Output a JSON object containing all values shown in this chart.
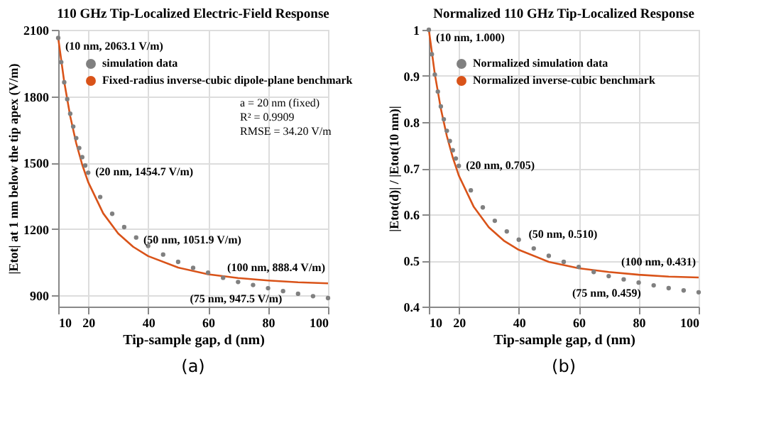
{
  "chart_data": [
    {
      "type": "scatter",
      "title": "110 GHz Tip-Localized Electric-Field Response",
      "xlabel": "Tip-sample gap,  d (nm)",
      "ylabel": "|Etot| at 1 nm below the tip apex (V/m)",
      "xlim": [
        10,
        100
      ],
      "xticks": [
        10,
        20,
        40,
        60,
        80,
        100
      ],
      "ylim": [
        850,
        2100
      ],
      "yticks": [
        900,
        1200,
        1500,
        1800,
        2100
      ],
      "grid": true,
      "legend": "top right",
      "series": [
        {
          "name": "simulation data",
          "marker": "circle",
          "color": "#808080",
          "x": [
            10,
            11,
            12,
            13,
            14,
            15,
            16,
            17,
            18,
            19,
            20,
            24,
            28,
            32,
            36,
            40,
            45,
            50,
            55,
            60,
            65,
            70,
            75,
            80,
            85,
            90,
            95,
            100
          ],
          "values": [
            2063.1,
            1954,
            1863,
            1787,
            1721,
            1663,
            1611,
            1566,
            1525,
            1487,
            1454.7,
            1345,
            1269,
            1209,
            1162,
            1124,
            1085,
            1051.9,
            1025,
            1003,
            980,
            961,
            947.5,
            933,
            920,
            908,
            897,
            888.4
          ]
        },
        {
          "name": "Fixed-radius inverse-cubic dipole-plane benchmark",
          "type": "line",
          "marker": "none",
          "line_style": "solid",
          "color": "#d95319",
          "x": [
            10,
            12,
            14,
            16,
            18,
            20,
            25,
            30,
            35,
            40,
            50,
            60,
            70,
            80,
            90,
            100
          ],
          "values": [
            2063,
            1865,
            1710,
            1588,
            1491,
            1412,
            1271,
            1180,
            1120,
            1078,
            1026,
            996,
            979,
            968,
            960,
            955
          ]
        }
      ],
      "annotations": [
        {
          "text": "(10 nm, 2063.1 V/m)",
          "x": 10,
          "y": 2063.1
        },
        {
          "text": "(20 nm, 1454.7 V/m)",
          "x": 20,
          "y": 1454.7
        },
        {
          "text": "(50 nm, 1051.9 V/m)",
          "x": 50,
          "y": 1051.9
        },
        {
          "text": "(75 nm, 947.5 V/m)",
          "x": 75,
          "y": 947.5
        },
        {
          "text": "(100 nm, 888.4 V/m)",
          "x": 100,
          "y": 888.4
        },
        "a = 20 nm (fixed)",
        "R² = 0.9909",
        "RMSE = 34.20 V/m",
        "(a)"
      ]
    },
    {
      "type": "scatter",
      "title": "Normalized 110 GHz Tip-Localized Response",
      "xlabel": "Tip-sample gap,  d (nm)",
      "ylabel": "|Etot(d)| / |Etot(10 nm)|",
      "xlim": [
        10,
        100
      ],
      "xticks": [
        10,
        20,
        40,
        60,
        80,
        100
      ],
      "ylim": [
        0.4,
        1.0
      ],
      "yticks": [
        0.4,
        0.5,
        0.6,
        0.7,
        0.8,
        0.9,
        1
      ],
      "grid": true,
      "legend": "top right",
      "series": [
        {
          "name": "Normalized simulation data",
          "marker": "circle",
          "color": "#808080",
          "x": [
            10,
            11,
            12,
            13,
            14,
            15,
            16,
            17,
            18,
            19,
            20,
            24,
            28,
            32,
            36,
            40,
            45,
            50,
            55,
            60,
            65,
            70,
            75,
            80,
            85,
            90,
            95,
            100
          ],
          "values": [
            1.0,
            0.947,
            0.903,
            0.866,
            0.834,
            0.806,
            0.781,
            0.759,
            0.739,
            0.721,
            0.705,
            0.652,
            0.615,
            0.586,
            0.563,
            0.545,
            0.526,
            0.51,
            0.497,
            0.486,
            0.475,
            0.466,
            0.459,
            0.452,
            0.446,
            0.44,
            0.435,
            0.431
          ]
        },
        {
          "name": "Normalized inverse-cubic benchmark",
          "type": "line",
          "marker": "none",
          "line_style": "solid",
          "color": "#d95319",
          "x": [
            10,
            12,
            14,
            16,
            18,
            20,
            25,
            30,
            35,
            40,
            50,
            60,
            70,
            80,
            90,
            100
          ],
          "values": [
            1.0,
            0.904,
            0.829,
            0.77,
            0.723,
            0.684,
            0.616,
            0.572,
            0.543,
            0.523,
            0.497,
            0.483,
            0.475,
            0.469,
            0.465,
            0.463
          ]
        }
      ],
      "annotations": [
        {
          "text": "(10 nm, 1.000)",
          "x": 10,
          "y": 1.0
        },
        {
          "text": "(20 nm, 0.705)",
          "x": 20,
          "y": 0.705
        },
        {
          "text": "(50 nm, 0.510)",
          "x": 50,
          "y": 0.51
        },
        {
          "text": "(75 nm, 0.459)",
          "x": 75,
          "y": 0.459
        },
        {
          "text": "(100 nm, 0.431)",
          "x": 100,
          "y": 0.431
        },
        "(b)"
      ]
    }
  ]
}
